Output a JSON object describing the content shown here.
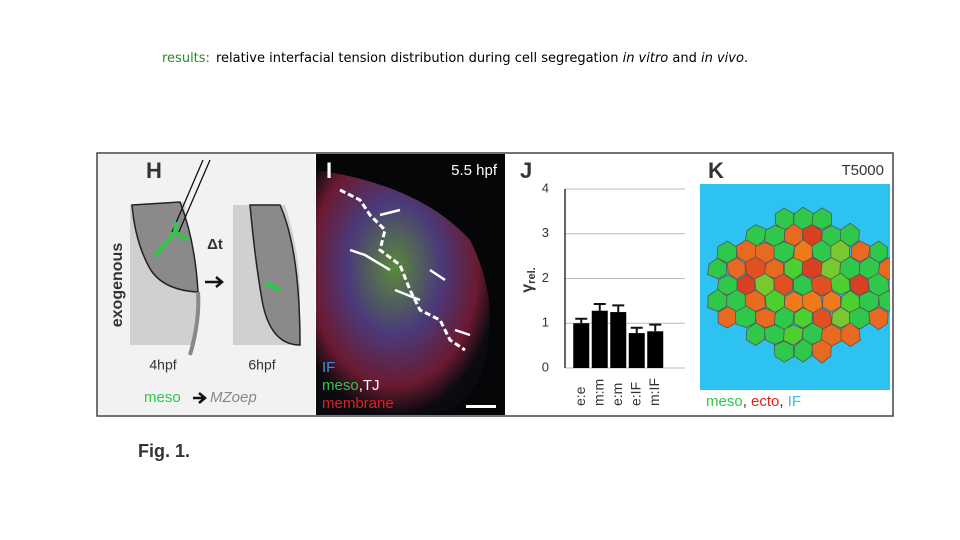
{
  "header": {
    "label": "results:",
    "parts": [
      "relative interfacial tension distribution during cell segregation ",
      "in vitro",
      " and ",
      "in vivo",
      "."
    ]
  },
  "panels": {
    "H": {
      "letter": "H",
      "side_label": "exogenous",
      "delta": "Δt",
      "time1": "4hpf",
      "time2": "6hpf",
      "legend_from": "meso",
      "legend_to": "MZoep"
    },
    "I": {
      "letter": "I",
      "time": "5.5 hpf",
      "legend": [
        {
          "parts": [
            {
              "text": "IF",
              "color": "#3a8ee6"
            }
          ]
        },
        {
          "parts": [
            {
              "text": "meso",
              "color": "#2fc84a"
            },
            {
              "text": ",TJ",
              "color": "#ffffff"
            }
          ]
        },
        {
          "parts": [
            {
              "text": "membrane",
              "color": "#e02020"
            }
          ]
        }
      ]
    },
    "J": {
      "letter": "J",
      "chart": {
        "type": "bar",
        "ylabel": "γ",
        "ylabel_sub": "rel.",
        "categories": [
          "e:e",
          "m:m",
          "e:m",
          "e:IF",
          "m:IF"
        ],
        "values": [
          1.0,
          1.28,
          1.25,
          0.78,
          0.82
        ],
        "errors": [
          0.1,
          0.15,
          0.15,
          0.12,
          0.15
        ],
        "color": "#000000",
        "ylim": [
          0,
          4
        ],
        "yticks": [
          0,
          1,
          2,
          3,
          4
        ],
        "grid": true
      }
    },
    "K": {
      "letter": "K",
      "time": "T5000",
      "legend": [
        {
          "text": "meso",
          "color": "#2fc84a",
          "separator": ", "
        },
        {
          "text": "ecto",
          "color": "#e02020",
          "separator": ", "
        },
        {
          "text": "IF",
          "color": "#3ab8ee"
        }
      ]
    }
  },
  "figure_label": "Fig. 1."
}
